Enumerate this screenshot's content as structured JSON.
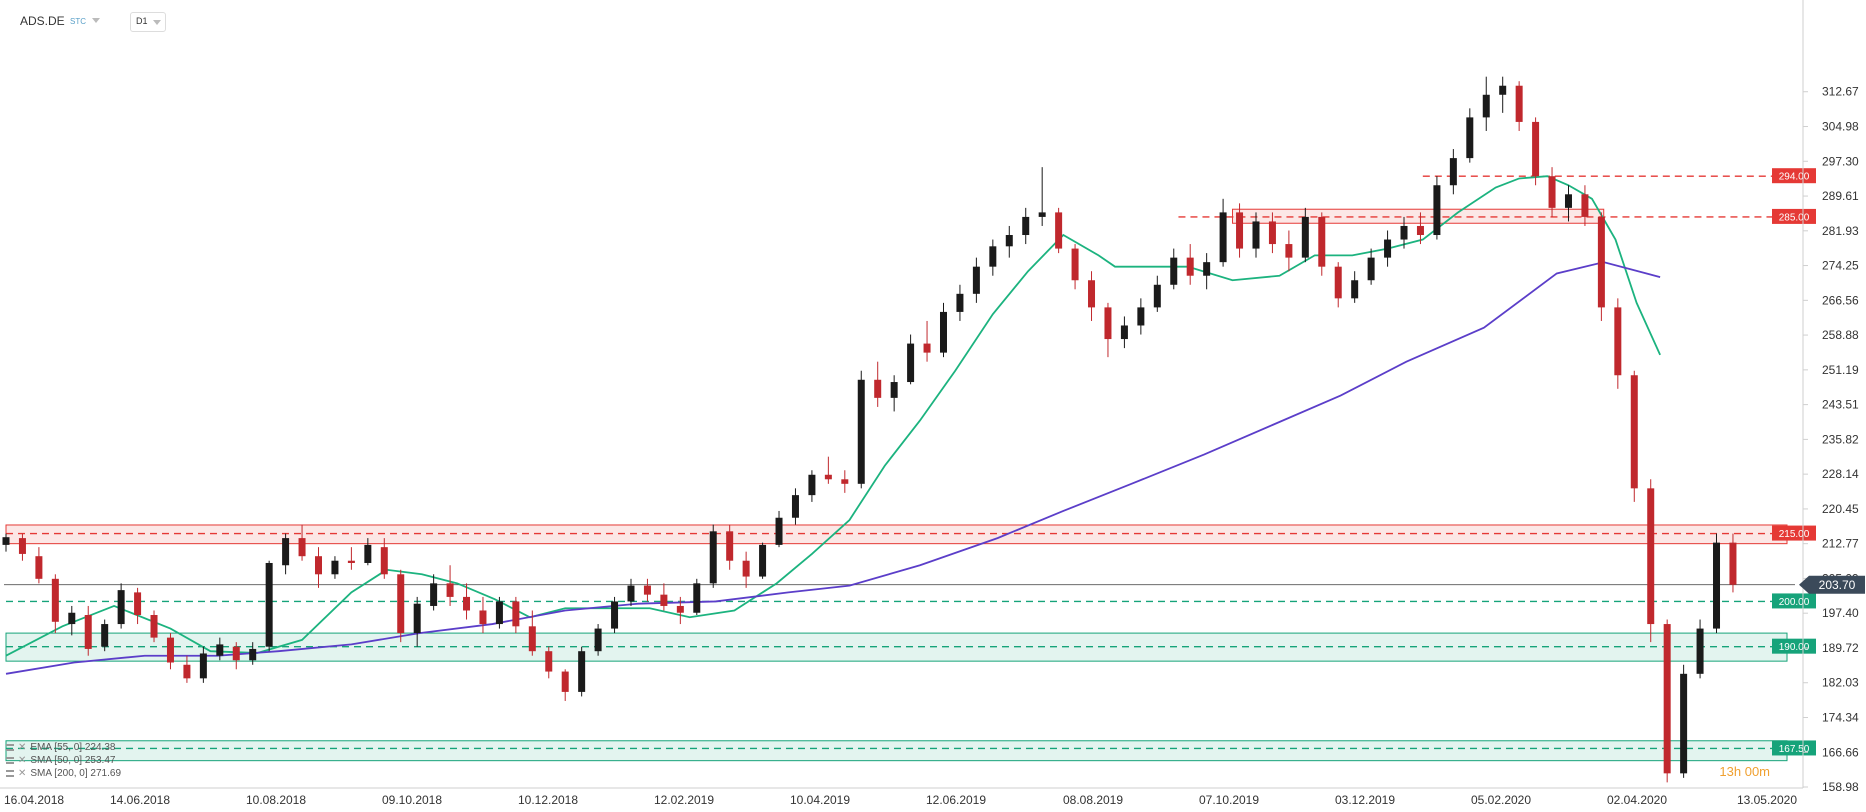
{
  "header": {
    "symbol": "ADS.DE",
    "source": "STC",
    "timeframe": "D1"
  },
  "indicators": [
    {
      "label": "EMA [55, 0] 224.38",
      "color": "#1cb37f"
    },
    {
      "label": "SMA [50, 0] 253.47",
      "color": "#1cb37f"
    },
    {
      "label": "SMA [200, 0] 271.69",
      "color": "#5b3ec9"
    }
  ],
  "countdown": "13h 00m",
  "colors": {
    "bull": "#1a1a1a",
    "bear": "#c0282d",
    "resistance": "#e53935",
    "support": "#16a37a",
    "sma50": "#1cb37f",
    "sma200": "#5b3ec9",
    "current": "#3b4a5a"
  },
  "chart_data": {
    "type": "candlestick",
    "title": "",
    "ylim": [
      158.98,
      320.35
    ],
    "y_ticks": [
      "312.67",
      "304.98",
      "297.30",
      "289.61",
      "281.93",
      "274.25",
      "266.56",
      "258.88",
      "251.19",
      "243.51",
      "235.82",
      "228.14",
      "220.45",
      "212.77",
      "205.09",
      "197.40",
      "189.72",
      "182.03",
      "174.34",
      "166.66",
      "158.98"
    ],
    "x_ticks": [
      "16.04.2018",
      "14.06.2018",
      "10.08.2018",
      "09.10.2018",
      "10.12.2018",
      "12.02.2019",
      "10.04.2019",
      "12.06.2019",
      "08.08.2019",
      "07.10.2019",
      "03.12.2019",
      "05.02.2020",
      "02.04.2020",
      "13.05.2020"
    ],
    "current_price": {
      "value": 203.7,
      "label": "203.70"
    },
    "levels": [
      {
        "value": 294.0,
        "label": "294.00",
        "kind": "resistance",
        "start_date": "2019-12-10"
      },
      {
        "value": 285.0,
        "label": "285.00",
        "kind": "resistance",
        "start_date": "2019-08-28"
      },
      {
        "value": 215.0,
        "label": "215.00",
        "kind": "resistance",
        "start_date": "2018-04-16"
      },
      {
        "value": 200.0,
        "label": "200.00",
        "kind": "support",
        "start_date": "2018-04-16"
      },
      {
        "value": 190.0,
        "label": "190.00",
        "kind": "support",
        "start_date": "2018-04-16"
      },
      {
        "value": 167.5,
        "label": "167.50",
        "kind": "support",
        "start_date": "2018-04-16"
      }
    ],
    "zones": [
      {
        "low": 212.77,
        "high": 216.9,
        "kind": "resistance",
        "start_date": "2018-04-16",
        "end_date": "2020-05-13"
      },
      {
        "low": 283.6,
        "high": 286.7,
        "kind": "resistance",
        "start_date": "2019-09-20",
        "end_date": "2020-02-25"
      },
      {
        "low": 186.8,
        "high": 193.0,
        "kind": "support",
        "start_date": "2018-04-16",
        "end_date": "2020-05-13"
      },
      {
        "low": 164.8,
        "high": 169.2,
        "kind": "support",
        "start_date": "2018-04-16",
        "end_date": "2020-05-13"
      }
    ],
    "series": [
      {
        "name": "SMA [50, 0] 253.47",
        "kind": "sma50",
        "x": [
          "2018-04-16",
          "2018-05-10",
          "2018-06-01",
          "2018-06-25",
          "2018-07-12",
          "2018-08-01",
          "2018-08-20",
          "2018-09-10",
          "2018-09-25",
          "2018-10-10",
          "2018-10-25",
          "2018-11-10",
          "2018-11-25",
          "2018-12-10",
          "2018-12-28",
          "2019-01-15",
          "2019-02-01",
          "2019-02-20",
          "2019-03-10",
          "2019-03-25",
          "2019-04-10",
          "2019-04-25",
          "2019-05-10",
          "2019-05-25",
          "2019-06-10",
          "2019-06-25",
          "2019-07-10",
          "2019-07-25",
          "2019-08-01",
          "2019-08-15",
          "2019-09-01",
          "2019-09-20",
          "2019-10-10",
          "2019-10-25",
          "2019-11-10",
          "2019-11-25",
          "2019-12-10",
          "2019-12-25",
          "2020-01-10",
          "2020-01-20",
          "2020-02-01",
          "2020-02-10",
          "2020-02-20",
          "2020-03-01",
          "2020-03-10",
          "2020-03-20"
        ],
        "y": [
          188.0,
          194.5,
          199.0,
          194.0,
          189.0,
          188.6,
          191.5,
          202.0,
          207.0,
          206.0,
          204.0,
          200.5,
          196.5,
          198.5,
          198.5,
          198.5,
          196.5,
          198.0,
          204.0,
          210.5,
          218.0,
          230.0,
          240.0,
          251.0,
          263.5,
          273.0,
          281.0,
          276.5,
          274.0,
          274.0,
          274.0,
          271.0,
          272.0,
          276.5,
          276.5,
          278.0,
          280.0,
          286.0,
          291.5,
          293.5,
          294.0,
          292.0,
          289.0,
          280.0,
          266.0,
          254.5
        ]
      },
      {
        "name": "SMA [200, 0] 271.69",
        "kind": "sma200",
        "x": [
          "2018-04-16",
          "2018-05-15",
          "2018-06-14",
          "2018-07-15",
          "2018-08-10",
          "2018-09-10",
          "2018-10-09",
          "2018-11-09",
          "2018-12-10",
          "2019-01-10",
          "2019-02-12",
          "2019-03-15",
          "2019-04-10",
          "2019-05-10",
          "2019-06-12",
          "2019-07-10",
          "2019-08-08",
          "2019-09-08",
          "2019-10-07",
          "2019-11-05",
          "2019-12-03",
          "2020-01-05",
          "2020-02-05",
          "2020-02-25",
          "2020-03-20"
        ],
        "y": [
          184.0,
          186.5,
          188.0,
          188.0,
          189.0,
          190.5,
          193.0,
          195.0,
          198.0,
          199.5,
          200.0,
          202.0,
          203.5,
          208.0,
          214.0,
          220.0,
          226.0,
          232.5,
          239.0,
          245.5,
          253.0,
          260.5,
          272.5,
          275.0,
          271.7
        ]
      }
    ],
    "candles": [
      [
        "2018-04-16",
        212.5,
        215,
        211,
        214.2
      ],
      [
        "2018-04-23",
        214,
        215,
        209,
        210.5
      ],
      [
        "2018-04-30",
        210,
        212,
        204,
        205
      ],
      [
        "2018-05-07",
        205,
        206,
        193,
        195.5
      ],
      [
        "2018-05-14",
        195,
        199,
        192.5,
        197.5
      ],
      [
        "2018-05-21",
        197,
        199,
        188,
        189.5
      ],
      [
        "2018-05-28",
        190,
        196,
        189,
        195
      ],
      [
        "2018-06-04",
        195,
        204,
        194,
        202.5
      ],
      [
        "2018-06-11",
        202,
        203,
        195,
        197
      ],
      [
        "2018-06-18",
        197,
        198,
        191,
        192
      ],
      [
        "2018-06-25",
        192,
        193,
        185,
        186.5
      ],
      [
        "2018-07-02",
        186,
        188,
        182,
        183
      ],
      [
        "2018-07-09",
        183,
        190,
        182,
        188.5
      ],
      [
        "2018-07-16",
        188,
        192,
        187,
        190.5
      ],
      [
        "2018-07-23",
        190,
        191,
        185,
        187
      ],
      [
        "2018-07-30",
        187,
        191,
        186,
        189.5
      ],
      [
        "2018-08-06",
        190,
        209,
        189,
        208.5
      ],
      [
        "2018-08-13",
        208,
        215,
        206,
        214
      ],
      [
        "2018-08-20",
        214,
        217,
        209,
        210
      ],
      [
        "2018-08-27",
        210,
        212,
        203,
        206
      ],
      [
        "2018-09-03",
        206,
        210,
        205,
        209
      ],
      [
        "2018-09-10",
        209,
        212,
        207,
        208.5
      ],
      [
        "2018-09-17",
        208.5,
        214,
        208,
        212.5
      ],
      [
        "2018-09-24",
        212,
        214,
        205,
        206
      ],
      [
        "2018-10-01",
        206,
        207,
        191,
        193
      ],
      [
        "2018-10-08",
        193,
        201,
        190,
        199.5
      ],
      [
        "2018-10-15",
        199,
        206,
        198,
        204
      ],
      [
        "2018-10-22",
        204,
        208,
        199,
        201
      ],
      [
        "2018-10-29",
        201,
        204,
        196,
        198
      ],
      [
        "2018-11-05",
        198,
        201,
        193,
        195
      ],
      [
        "2018-11-12",
        195,
        201,
        194,
        200
      ],
      [
        "2018-11-19",
        200,
        201,
        193,
        194.5
      ],
      [
        "2018-11-26",
        194.5,
        198,
        188,
        189
      ],
      [
        "2018-12-03",
        189,
        190,
        183,
        184.5
      ],
      [
        "2018-12-10",
        184.5,
        185,
        178,
        180
      ],
      [
        "2018-12-17",
        180,
        190,
        179,
        189
      ],
      [
        "2018-12-24",
        189,
        195,
        188,
        194
      ],
      [
        "2018-12-31",
        194,
        201,
        193,
        200
      ],
      [
        "2019-01-07",
        200,
        205,
        199,
        203.5
      ],
      [
        "2019-01-14",
        203.5,
        205,
        200,
        201.5
      ],
      [
        "2019-01-21",
        201.5,
        204,
        198,
        199
      ],
      [
        "2019-01-28",
        199,
        201,
        195,
        197.5
      ],
      [
        "2019-02-04",
        197.5,
        205,
        197,
        204
      ],
      [
        "2019-02-11",
        204,
        217,
        203,
        215.5
      ],
      [
        "2019-02-18",
        215.5,
        217,
        207,
        209
      ],
      [
        "2019-02-25",
        209,
        211,
        203,
        205.5
      ],
      [
        "2019-03-04",
        205.5,
        213,
        205,
        212.5
      ],
      [
        "2019-03-11",
        212.5,
        220,
        212,
        218.5
      ],
      [
        "2019-03-18",
        218.5,
        225,
        217,
        223.5
      ],
      [
        "2019-03-25",
        223.5,
        229,
        222,
        228
      ],
      [
        "2019-04-01",
        228,
        232,
        226,
        227
      ],
      [
        "2019-04-08",
        227,
        229,
        224,
        226
      ],
      [
        "2019-04-15",
        226,
        251,
        225,
        249
      ],
      [
        "2019-04-22",
        249,
        253,
        243,
        245
      ],
      [
        "2019-04-29",
        245,
        250,
        242,
        248.5
      ],
      [
        "2019-05-06",
        248.5,
        259,
        248,
        257
      ],
      [
        "2019-05-13",
        257,
        262,
        253,
        255
      ],
      [
        "2019-05-20",
        255,
        266,
        254,
        264
      ],
      [
        "2019-05-27",
        264,
        270,
        262,
        268
      ],
      [
        "2019-06-03",
        268,
        276,
        266,
        274
      ],
      [
        "2019-06-10",
        274,
        280,
        272,
        278.5
      ],
      [
        "2019-06-17",
        278.5,
        283,
        276,
        281
      ],
      [
        "2019-06-24",
        281,
        287,
        279,
        285
      ],
      [
        "2019-07-01",
        285,
        296,
        283,
        286
      ],
      [
        "2019-07-08",
        286,
        287,
        277,
        278
      ],
      [
        "2019-07-15",
        278,
        279,
        269,
        271
      ],
      [
        "2019-07-22",
        271,
        273,
        262,
        265
      ],
      [
        "2019-07-29",
        265,
        266,
        254,
        258
      ],
      [
        "2019-08-05",
        258,
        263,
        256,
        261
      ],
      [
        "2019-08-12",
        261,
        267,
        259,
        265
      ],
      [
        "2019-08-19",
        265,
        272,
        264,
        270
      ],
      [
        "2019-08-26",
        270,
        278,
        269,
        276
      ],
      [
        "2019-09-02",
        276,
        279,
        270,
        272
      ],
      [
        "2019-09-09",
        272,
        277,
        269,
        275
      ],
      [
        "2019-09-16",
        275,
        289,
        274,
        286
      ],
      [
        "2019-09-23",
        286,
        288,
        276,
        278
      ],
      [
        "2019-09-30",
        278,
        286,
        276,
        284
      ],
      [
        "2019-10-07",
        284,
        286,
        277,
        279
      ],
      [
        "2019-10-14",
        279,
        282,
        273,
        276
      ],
      [
        "2019-10-21",
        276,
        287,
        275,
        285
      ],
      [
        "2019-10-28",
        285,
        286,
        272,
        274
      ],
      [
        "2019-11-04",
        274,
        275,
        265,
        267
      ],
      [
        "2019-11-11",
        267,
        273,
        266,
        271
      ],
      [
        "2019-11-18",
        271,
        278,
        270,
        276
      ],
      [
        "2019-11-25",
        276,
        282,
        274,
        280
      ],
      [
        "2019-12-02",
        280,
        285,
        278,
        283
      ],
      [
        "2019-12-09",
        283,
        286,
        279,
        281
      ],
      [
        "2019-12-16",
        281,
        294,
        280,
        292
      ],
      [
        "2019-12-23",
        292,
        300,
        290,
        298
      ],
      [
        "2019-12-30",
        298,
        309,
        297,
        307
      ],
      [
        "2020-01-06",
        307,
        316,
        304,
        312
      ],
      [
        "2020-01-13",
        312,
        316,
        308,
        314
      ],
      [
        "2020-01-20",
        314,
        315,
        304,
        306
      ],
      [
        "2020-01-27",
        306,
        307,
        292,
        294
      ],
      [
        "2020-02-03",
        294,
        296,
        285,
        287
      ],
      [
        "2020-02-10",
        287,
        292,
        284,
        290
      ],
      [
        "2020-02-17",
        290,
        292,
        283,
        285
      ],
      [
        "2020-02-24",
        285,
        286,
        262,
        265
      ],
      [
        "2020-03-02",
        265,
        267,
        247,
        250
      ],
      [
        "2020-03-09",
        250,
        251,
        222,
        225
      ],
      [
        "2020-03-16",
        225,
        227,
        191,
        195
      ],
      [
        "2020-03-23",
        195,
        196,
        160,
        162
      ],
      [
        "2020-03-30",
        162,
        186,
        161,
        184
      ],
      [
        "2020-04-06",
        184,
        196,
        183,
        194
      ],
      [
        "2020-04-13",
        194,
        215,
        193,
        213
      ],
      [
        "2020-04-20",
        213,
        215,
        202,
        203.7
      ]
    ]
  }
}
